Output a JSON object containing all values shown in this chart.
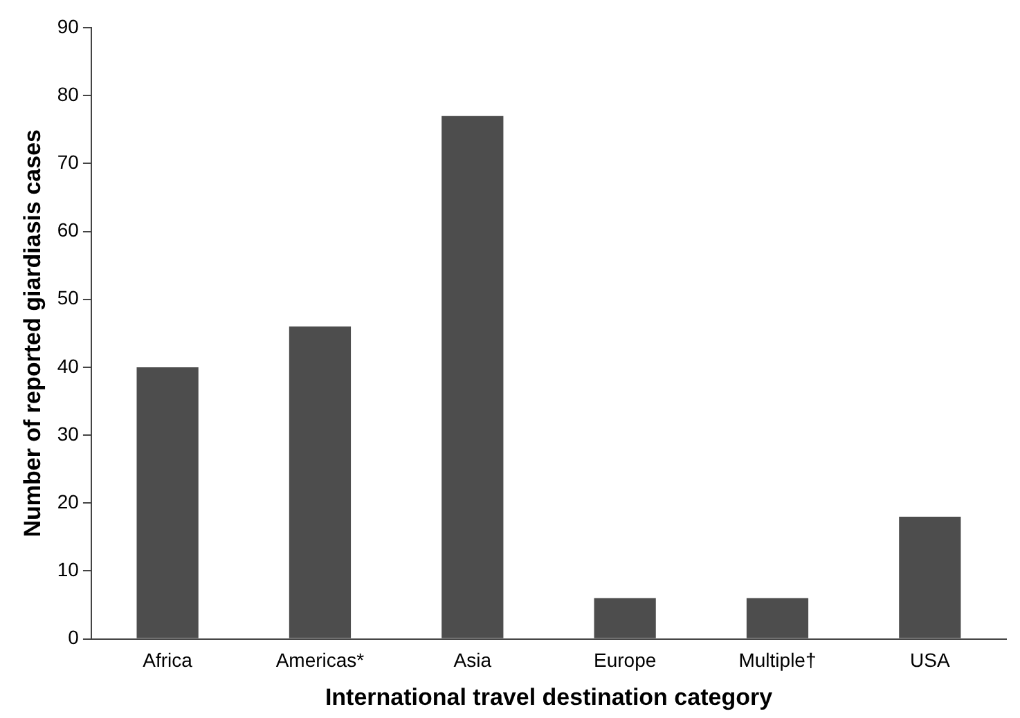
{
  "chart_data": {
    "type": "bar",
    "xlabel": "International travel destination category",
    "ylabel": "Number of reported giardiasis cases",
    "categories": [
      "Africa",
      "Americas*",
      "Asia",
      "Europe",
      "Multiple†",
      "USA"
    ],
    "values": [
      40,
      46,
      77,
      6,
      6,
      18
    ],
    "color": "#4d4d4d",
    "ylim": [
      0,
      90
    ],
    "yticks": [
      0,
      10,
      20,
      30,
      40,
      50,
      60,
      70,
      80,
      90
    ],
    "grid": false
  }
}
